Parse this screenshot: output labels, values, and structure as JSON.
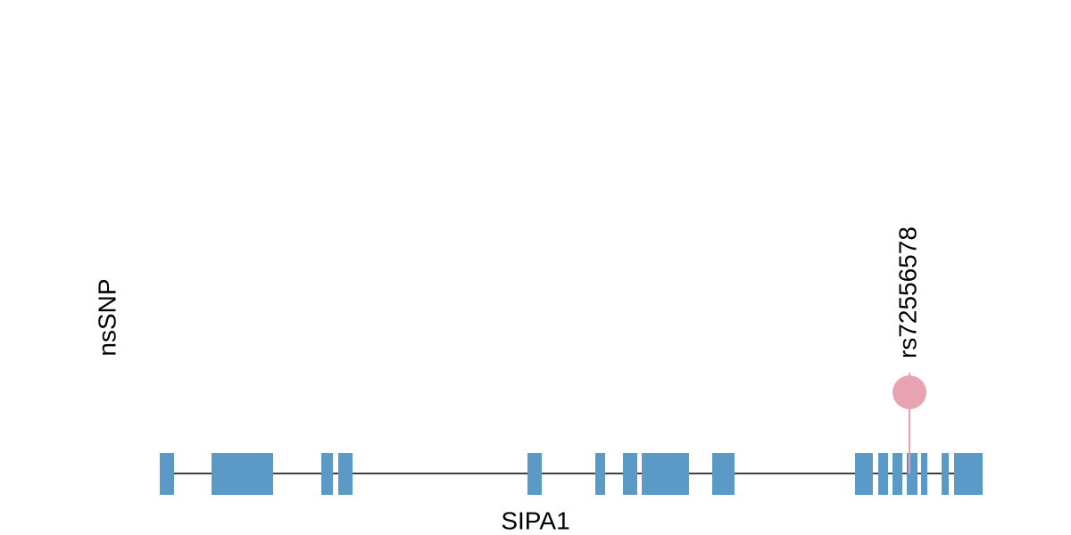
{
  "track": {
    "label": "nsSNP"
  },
  "variant": {
    "label": "rs72556578"
  },
  "gene": {
    "label": "SIPA1"
  }
}
